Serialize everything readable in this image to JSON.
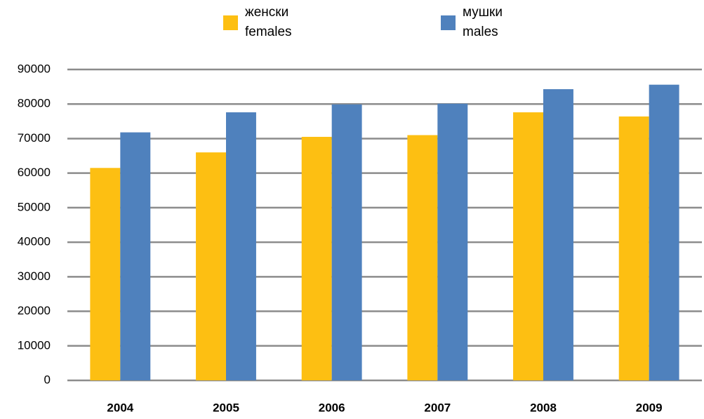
{
  "chart_data": {
    "type": "bar",
    "categories": [
      "2004",
      "2005",
      "2006",
      "2007",
      "2008",
      "2009"
    ],
    "series": [
      {
        "name": "женски\nfemales",
        "color": "#fdbf12",
        "values": [
          61500,
          66000,
          70500,
          71000,
          77600,
          76400
        ]
      },
      {
        "name": "мушки\nmales",
        "color": "#4f81bd",
        "values": [
          71800,
          77600,
          79900,
          80100,
          84300,
          85600
        ]
      }
    ],
    "ylim": [
      0,
      90000
    ],
    "yticks": [
      0,
      10000,
      20000,
      30000,
      40000,
      50000,
      60000,
      70000,
      80000,
      90000
    ],
    "grid": true,
    "legend": "top"
  }
}
